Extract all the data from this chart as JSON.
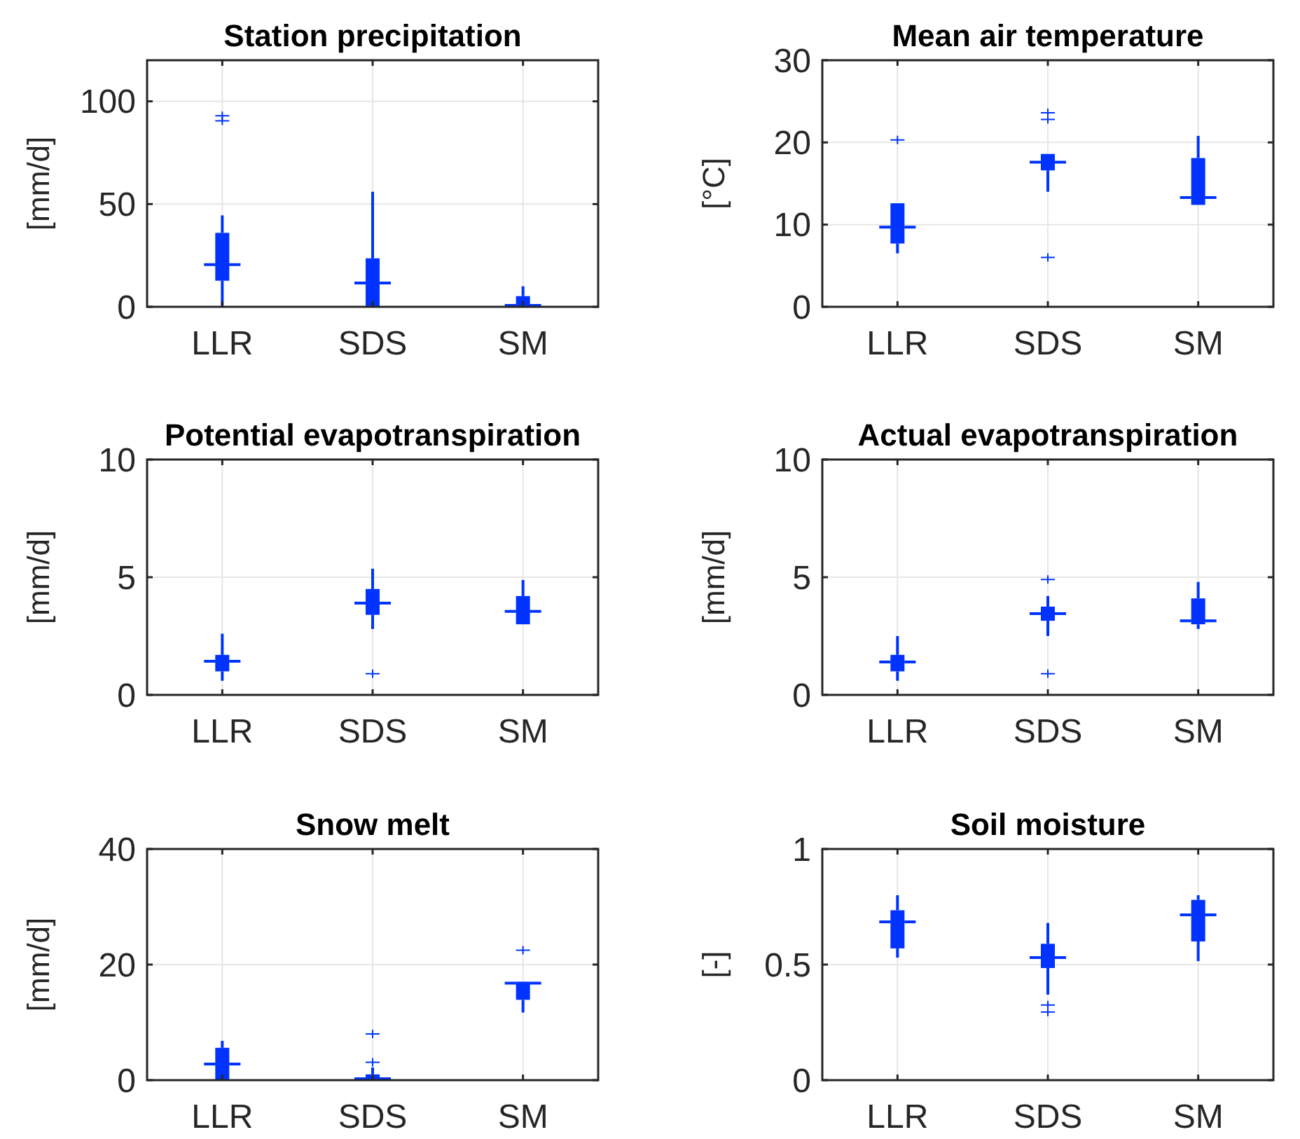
{
  "chart_data": [
    {
      "type": "box",
      "title": "Station precipitation",
      "ylabel": "[mm/d]",
      "categories": [
        "LLR",
        "SDS",
        "SM"
      ],
      "ylim": [
        0,
        120
      ],
      "yticks": [
        0,
        50,
        100
      ],
      "grid": true,
      "series": [
        {
          "color": "#0033ff",
          "boxes": [
            {
              "low": 0,
              "q1": 12.7,
              "median": 20.5,
              "q3": 36,
              "high": 44.5,
              "outliers": [
                93,
                90.5
              ]
            },
            {
              "low": 0,
              "q1": 0,
              "median": 11.6,
              "q3": 23.6,
              "high": 56
            },
            {
              "low": 0,
              "q1": 0,
              "median": 0.7,
              "q3": 5.2,
              "high": 10
            }
          ]
        }
      ]
    },
    {
      "type": "box",
      "title": "Mean air temperature",
      "ylabel": "[°C]",
      "categories": [
        "LLR",
        "SDS",
        "SM"
      ],
      "ylim": [
        0,
        30
      ],
      "yticks": [
        0,
        10,
        20,
        30
      ],
      "grid": true,
      "series": [
        {
          "color": "#0033ff",
          "boxes": [
            {
              "low": 6.5,
              "q1": 7.7,
              "median": 9.7,
              "q3": 12.6,
              "high": 12.7,
              "outliers": [
                20.3
              ]
            },
            {
              "low": 14,
              "q1": 16.6,
              "median": 17.6,
              "q3": 18.6,
              "high": 18.75,
              "outliers": [
                23.6,
                22.8,
                6
              ]
            },
            {
              "low": 12.4,
              "q1": 12.4,
              "median": 13.3,
              "q3": 18.1,
              "high": 20.8
            }
          ]
        }
      ]
    },
    {
      "type": "box",
      "title": "Potential evapotranspiration",
      "ylabel": "[mm/d]",
      "categories": [
        "LLR",
        "SDS",
        "SM"
      ],
      "ylim": [
        0,
        10
      ],
      "yticks": [
        0,
        5,
        10
      ],
      "grid": true,
      "series": [
        {
          "color": "#0033ff",
          "boxes": [
            {
              "low": 0.6,
              "q1": 1,
              "median": 1.43,
              "q3": 1.7,
              "high": 2.6
            },
            {
              "low": 2.8,
              "q1": 3.4,
              "median": 3.9,
              "q3": 4.5,
              "high": 5.36,
              "outliers": [
                0.9
              ]
            },
            {
              "low": 3,
              "q1": 3,
              "median": 3.55,
              "q3": 4.2,
              "high": 4.88
            }
          ]
        }
      ]
    },
    {
      "type": "box",
      "title": "Actual evapotranspiration",
      "ylabel": "[mm/d]",
      "categories": [
        "LLR",
        "SDS",
        "SM"
      ],
      "ylim": [
        0,
        10
      ],
      "yticks": [
        0,
        5,
        10
      ],
      "grid": true,
      "series": [
        {
          "color": "#0033ff",
          "boxes": [
            {
              "low": 0.6,
              "q1": 1,
              "median": 1.4,
              "q3": 1.7,
              "high": 2.5
            },
            {
              "low": 2.5,
              "q1": 3.15,
              "median": 3.45,
              "q3": 3.75,
              "high": 4.2,
              "outliers": [
                4.9,
                0.9
              ]
            },
            {
              "low": 2.8,
              "q1": 3,
              "median": 3.15,
              "q3": 4.1,
              "high": 4.8
            }
          ]
        }
      ]
    },
    {
      "type": "box",
      "title": "Snow melt",
      "ylabel": "[mm/d]",
      "categories": [
        "LLR",
        "SDS",
        "SM"
      ],
      "ylim": [
        0,
        40
      ],
      "yticks": [
        0,
        20,
        40
      ],
      "grid": true,
      "series": [
        {
          "color": "#0033ff",
          "boxes": [
            {
              "low": 0,
              "q1": 0,
              "median": 2.8,
              "q3": 5.6,
              "high": 6.8
            },
            {
              "low": 0,
              "q1": 0,
              "median": 0.25,
              "q3": 1,
              "high": 2.2,
              "outliers": [
                8,
                3.1
              ]
            },
            {
              "low": 11.7,
              "q1": 13.9,
              "median": 16.8,
              "q3": 16.8,
              "high": 16.8,
              "outliers": [
                22.5
              ]
            }
          ]
        }
      ]
    },
    {
      "type": "box",
      "title": "Soil moisture",
      "ylabel": "[-]",
      "categories": [
        "LLR",
        "SDS",
        "SM"
      ],
      "ylim": [
        0,
        1
      ],
      "yticks": [
        0,
        0.5,
        1
      ],
      "grid": true,
      "series": [
        {
          "color": "#0033ff",
          "boxes": [
            {
              "low": 0.53,
              "q1": 0.57,
              "median": 0.685,
              "q3": 0.735,
              "high": 0.8
            },
            {
              "low": 0.37,
              "q1": 0.485,
              "median": 0.53,
              "q3": 0.59,
              "high": 0.68,
              "outliers": [
                0.325,
                0.295
              ]
            },
            {
              "low": 0.515,
              "q1": 0.6,
              "median": 0.715,
              "q3": 0.78,
              "high": 0.8
            }
          ]
        }
      ]
    }
  ]
}
